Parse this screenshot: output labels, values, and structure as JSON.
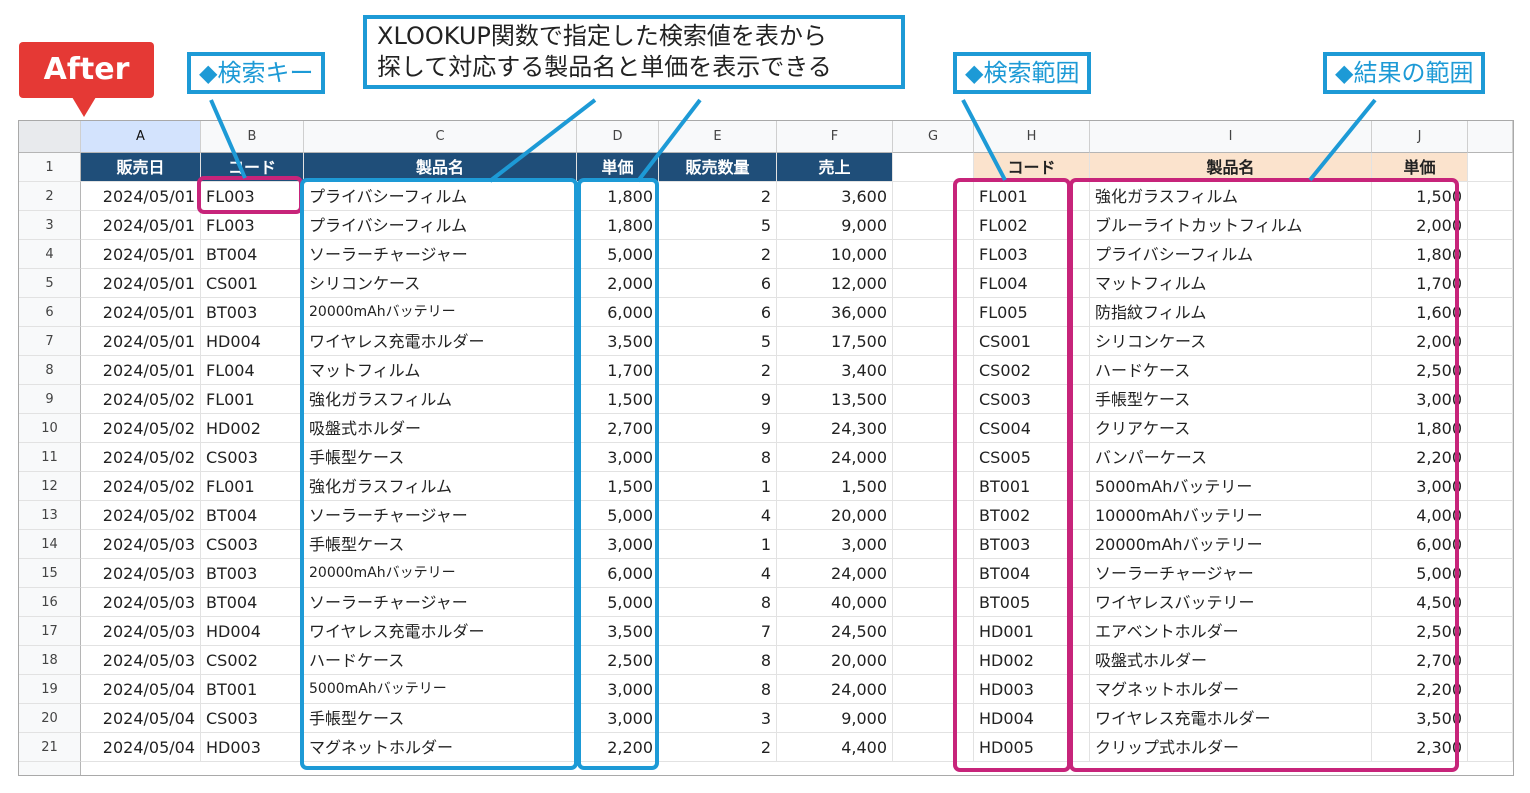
{
  "badge": "After",
  "callouts": {
    "key": "◆検索キー",
    "desc_line1": "XLOOKUP関数で指定した検索値を表から",
    "desc_line2": "探して対応する製品名と単価を表示できる",
    "range": "◆検索範囲",
    "result": "◆結果の範囲"
  },
  "columns": [
    "A",
    "B",
    "C",
    "D",
    "E",
    "F",
    "G",
    "H",
    "I",
    "J"
  ],
  "sales_headers": [
    "販売日",
    "コード",
    "製品名",
    "単価",
    "販売数量",
    "売上"
  ],
  "lookup_headers": [
    "コード",
    "製品名",
    "単価"
  ],
  "sales_rows": [
    [
      "2024/05/01",
      "FL003",
      "プライバシーフィルム",
      "1,800",
      "2",
      "3,600"
    ],
    [
      "2024/05/01",
      "FL003",
      "プライバシーフィルム",
      "1,800",
      "5",
      "9,000"
    ],
    [
      "2024/05/01",
      "BT004",
      "ソーラーチャージャー",
      "5,000",
      "2",
      "10,000"
    ],
    [
      "2024/05/01",
      "CS001",
      "シリコンケース",
      "2,000",
      "6",
      "12,000"
    ],
    [
      "2024/05/01",
      "BT003",
      "20000mAhバッテリー",
      "6,000",
      "6",
      "36,000"
    ],
    [
      "2024/05/01",
      "HD004",
      "ワイヤレス充電ホルダー",
      "3,500",
      "5",
      "17,500"
    ],
    [
      "2024/05/01",
      "FL004",
      "マットフィルム",
      "1,700",
      "2",
      "3,400"
    ],
    [
      "2024/05/02",
      "FL001",
      "強化ガラスフィルム",
      "1,500",
      "9",
      "13,500"
    ],
    [
      "2024/05/02",
      "HD002",
      "吸盤式ホルダー",
      "2,700",
      "9",
      "24,300"
    ],
    [
      "2024/05/02",
      "CS003",
      "手帳型ケース",
      "3,000",
      "8",
      "24,000"
    ],
    [
      "2024/05/02",
      "FL001",
      "強化ガラスフィルム",
      "1,500",
      "1",
      "1,500"
    ],
    [
      "2024/05/02",
      "BT004",
      "ソーラーチャージャー",
      "5,000",
      "4",
      "20,000"
    ],
    [
      "2024/05/03",
      "CS003",
      "手帳型ケース",
      "3,000",
      "1",
      "3,000"
    ],
    [
      "2024/05/03",
      "BT003",
      "20000mAhバッテリー",
      "6,000",
      "4",
      "24,000"
    ],
    [
      "2024/05/03",
      "BT004",
      "ソーラーチャージャー",
      "5,000",
      "8",
      "40,000"
    ],
    [
      "2024/05/03",
      "HD004",
      "ワイヤレス充電ホルダー",
      "3,500",
      "7",
      "24,500"
    ],
    [
      "2024/05/03",
      "CS002",
      "ハードケース",
      "2,500",
      "8",
      "20,000"
    ],
    [
      "2024/05/04",
      "BT001",
      "5000mAhバッテリー",
      "3,000",
      "8",
      "24,000"
    ],
    [
      "2024/05/04",
      "CS003",
      "手帳型ケース",
      "3,000",
      "3",
      "9,000"
    ],
    [
      "2024/05/04",
      "HD003",
      "マグネットホルダー",
      "2,200",
      "2",
      "4,400"
    ]
  ],
  "lookup_rows": [
    [
      "FL001",
      "強化ガラスフィルム",
      "1,500"
    ],
    [
      "FL002",
      "ブルーライトカットフィルム",
      "2,000"
    ],
    [
      "FL003",
      "プライバシーフィルム",
      "1,800"
    ],
    [
      "FL004",
      "マットフィルム",
      "1,700"
    ],
    [
      "FL005",
      "防指紋フィルム",
      "1,600"
    ],
    [
      "CS001",
      "シリコンケース",
      "2,000"
    ],
    [
      "CS002",
      "ハードケース",
      "2,500"
    ],
    [
      "CS003",
      "手帳型ケース",
      "3,000"
    ],
    [
      "CS004",
      "クリアケース",
      "1,800"
    ],
    [
      "CS005",
      "バンパーケース",
      "2,200"
    ],
    [
      "BT001",
      "5000mAhバッテリー",
      "3,000"
    ],
    [
      "BT002",
      "10000mAhバッテリー",
      "4,000"
    ],
    [
      "BT003",
      "20000mAhバッテリー",
      "6,000"
    ],
    [
      "BT004",
      "ソーラーチャージャー",
      "5,000"
    ],
    [
      "BT005",
      "ワイヤレスバッテリー",
      "4,500"
    ],
    [
      "HD001",
      "エアベントホルダー",
      "2,500"
    ],
    [
      "HD002",
      "吸盤式ホルダー",
      "2,700"
    ],
    [
      "HD003",
      "マグネットホルダー",
      "2,200"
    ],
    [
      "HD004",
      "ワイヤレス充電ホルダー",
      "3,500"
    ],
    [
      "HD005",
      "クリップ式ホルダー",
      "2,300"
    ]
  ],
  "colors": {
    "header_blue": "#1f4e79",
    "header_peach": "#fbe3cd",
    "callout_blue": "#1d9ad6",
    "highlight_pink": "#c7247a",
    "badge_red": "#e53935"
  }
}
